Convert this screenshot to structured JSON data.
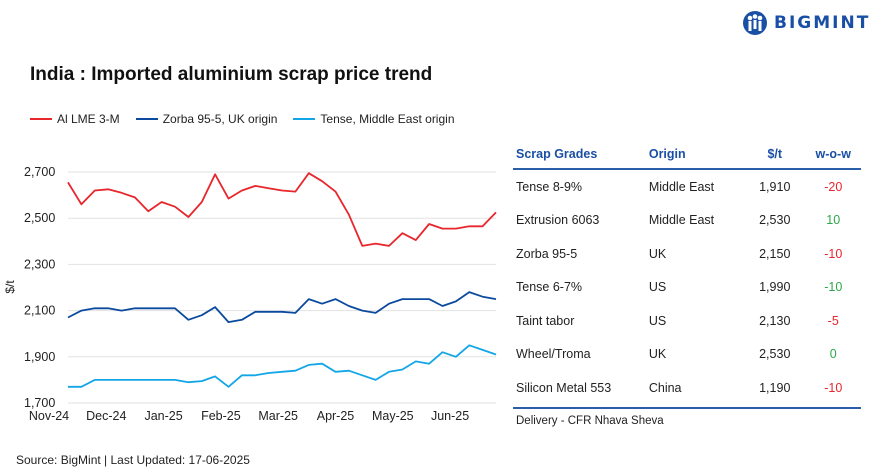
{
  "brand": {
    "name": "BIGMINT",
    "color": "#1a4fa6"
  },
  "title": "India : Imported aluminium scrap price trend",
  "chart_data": {
    "type": "line",
    "ylabel": "$/t",
    "ylim": [
      1700,
      2700
    ],
    "yticks": [
      "2,700",
      "2,500",
      "2,300",
      "2,100",
      "1,900",
      "1,700"
    ],
    "ytick_values": [
      2700,
      2500,
      2300,
      2100,
      1900,
      1700
    ],
    "xtick_labels": [
      "Nov-24",
      "Dec-24",
      "Jan-25",
      "Feb-25",
      "Mar-25",
      "Apr-25",
      "May-25",
      "Jun-25"
    ],
    "grid": true,
    "legend_position": "top-left",
    "series": [
      {
        "name": "Al LME 3-M",
        "color": "#e8262b",
        "values": [
          2655,
          2560,
          2620,
          2625,
          2610,
          2590,
          2530,
          2570,
          2550,
          2505,
          2570,
          2690,
          2585,
          2620,
          2640,
          2630,
          2620,
          2615,
          2695,
          2660,
          2615,
          2515,
          2380,
          2390,
          2380,
          2435,
          2405,
          2475,
          2455,
          2455,
          2465,
          2465,
          2525
        ]
      },
      {
        "name": "Zorba 95-5, UK origin",
        "color": "#0b4a9e",
        "values": [
          2070,
          2100,
          2110,
          2110,
          2100,
          2110,
          2110,
          2110,
          2110,
          2060,
          2080,
          2115,
          2050,
          2060,
          2095,
          2095,
          2095,
          2090,
          2150,
          2130,
          2150,
          2120,
          2100,
          2090,
          2130,
          2150,
          2150,
          2150,
          2120,
          2140,
          2180,
          2160,
          2150
        ]
      },
      {
        "name": "Tense, Middle East origin",
        "color": "#13a6e6",
        "values": [
          1770,
          1770,
          1800,
          1800,
          1800,
          1800,
          1800,
          1800,
          1800,
          1790,
          1795,
          1815,
          1770,
          1820,
          1820,
          1830,
          1835,
          1840,
          1865,
          1870,
          1835,
          1840,
          1820,
          1800,
          1835,
          1845,
          1880,
          1870,
          1920,
          1900,
          1950,
          1930,
          1910
        ]
      }
    ]
  },
  "table": {
    "headers": [
      "Scrap Grades",
      "Origin",
      "$/t",
      "w-o-w"
    ],
    "rows": [
      {
        "grade": "Tense 8-9%",
        "origin": "Middle East",
        "price": "1,910",
        "wow": "-20",
        "color": "#e8262b"
      },
      {
        "grade": "Extrusion 6063",
        "origin": "Middle East",
        "price": "2,530",
        "wow": "10",
        "color": "#2ca84a"
      },
      {
        "grade": "Zorba 95-5",
        "origin": "UK",
        "price": "2,150",
        "wow": "-10",
        "color": "#e8262b"
      },
      {
        "grade": "Tense 6-7%",
        "origin": "US",
        "price": "1,990",
        "wow": "-10",
        "color": "#2ca84a"
      },
      {
        "grade": "Taint tabor",
        "origin": "US",
        "price": "2,130",
        "wow": "-5",
        "color": "#e8262b"
      },
      {
        "grade": "Wheel/Troma",
        "origin": "UK",
        "price": "2,530",
        "wow": "0",
        "color": "#2ca84a"
      },
      {
        "grade": "Silicon Metal 553",
        "origin": "China",
        "price": "1,190",
        "wow": "-10",
        "color": "#e8262b"
      }
    ],
    "note": "Delivery - CFR Nhava Sheva"
  },
  "source": "Source: BigMint | Last Updated: 17-06-2025"
}
